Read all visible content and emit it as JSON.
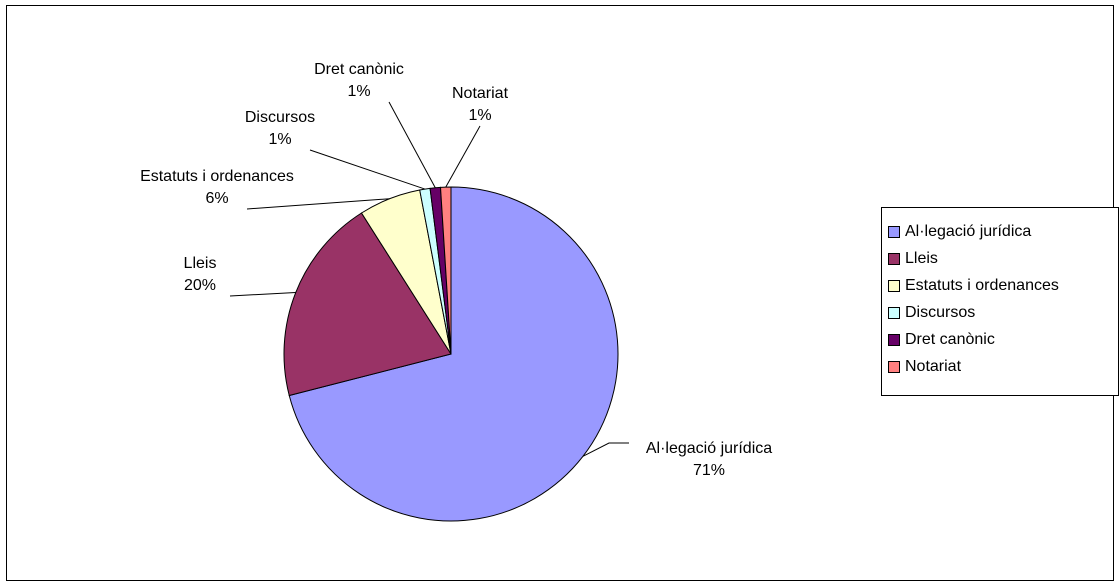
{
  "chart_data": {
    "type": "pie",
    "title": "",
    "slices": [
      {
        "name": "Al·legació jurídica",
        "value": 71,
        "label": "71%",
        "color": "#9999ff"
      },
      {
        "name": "Lleis",
        "value": 20,
        "label": "20%",
        "color": "#993366"
      },
      {
        "name": "Estatuts i ordenances",
        "value": 6,
        "label": "6%",
        "color": "#ffffcc"
      },
      {
        "name": "Discursos",
        "value": 1,
        "label": "1%",
        "color": "#ccffff"
      },
      {
        "name": "Dret canònic",
        "value": 1,
        "label": "1%",
        "color": "#660066"
      },
      {
        "name": "Notariat",
        "value": 1,
        "label": "1%",
        "color": "#ff8080"
      }
    ],
    "legend_position": "right"
  }
}
